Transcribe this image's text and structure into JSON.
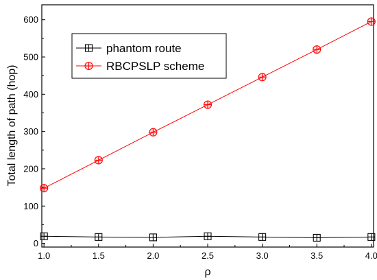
{
  "chart_data": {
    "type": "line",
    "xlabel": "ρ",
    "ylabel": "Total length of path (hop)",
    "xlim": [
      0.98,
      4.02
    ],
    "ylim": [
      -10,
      640
    ],
    "xticks": [
      1.0,
      1.5,
      2.0,
      2.5,
      3.0,
      3.5,
      4.0
    ],
    "xtick_labels": [
      "1.0",
      "1.5",
      "2.0",
      "2.5",
      "3.0",
      "3.5",
      "4.0"
    ],
    "yticks": [
      0,
      100,
      200,
      300,
      400,
      500,
      600
    ],
    "ytick_labels": [
      "0",
      "100",
      "200",
      "300",
      "400",
      "500",
      "600"
    ],
    "grid": false,
    "legend_position": "top-left",
    "x": [
      1.0,
      1.5,
      2.0,
      2.5,
      3.0,
      3.5,
      4.0
    ],
    "series": [
      {
        "name": "phantom route",
        "values": [
          19,
          17,
          16,
          19,
          17,
          15,
          17
        ],
        "color": "#000000",
        "marker": "square-plus"
      },
      {
        "name": "RBCPSLP scheme",
        "values": [
          148,
          223,
          298,
          372,
          446,
          520,
          595
        ],
        "color": "#ff0000",
        "marker": "circle-plus"
      }
    ]
  }
}
